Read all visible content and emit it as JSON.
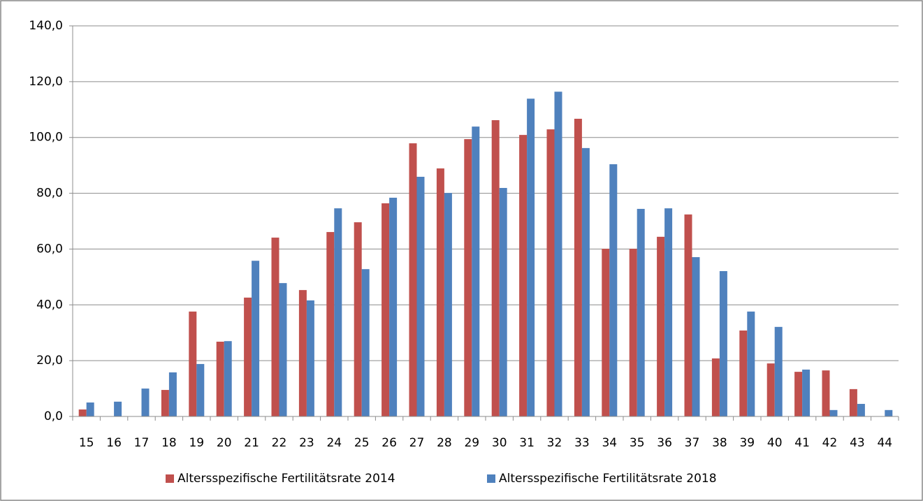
{
  "chart_data": {
    "type": "bar",
    "categories": [
      "15",
      "16",
      "17",
      "18",
      "19",
      "20",
      "21",
      "22",
      "23",
      "24",
      "25",
      "26",
      "27",
      "28",
      "29",
      "30",
      "31",
      "32",
      "33",
      "34",
      "35",
      "36",
      "37",
      "38",
      "39",
      "40",
      "41",
      "42",
      "43",
      "44"
    ],
    "series": [
      {
        "name": "Altersspezifische Fertilitätsrate 2014",
        "color": "#c0504d",
        "values": [
          2.5,
          0,
          0,
          9.5,
          37.6,
          26.8,
          42.6,
          64.1,
          45.3,
          66.1,
          69.6,
          76.4,
          97.9,
          88.9,
          99.4,
          106.2,
          100.9,
          102.9,
          106.7,
          60.1,
          60.1,
          64.4,
          72.4,
          20.8,
          30.8,
          19.0,
          16.0,
          16.5,
          9.8,
          0
        ]
      },
      {
        "name": "Altersspezifische Fertilitätsrate 2018",
        "color": "#4f81bd",
        "values": [
          5.0,
          5.3,
          10.0,
          15.8,
          18.8,
          27.0,
          55.8,
          47.8,
          41.6,
          74.6,
          52.8,
          78.4,
          85.9,
          80.1,
          103.9,
          81.9,
          113.9,
          116.4,
          96.2,
          90.4,
          74.4,
          74.6,
          57.1,
          52.1,
          37.6,
          32.1,
          16.8,
          2.3,
          4.5,
          2.3
        ]
      }
    ],
    "ylim": [
      0,
      140
    ],
    "yticks": [
      {
        "value": 0,
        "label": "0,0"
      },
      {
        "value": 20,
        "label": "20,0"
      },
      {
        "value": 40,
        "label": "40,0"
      },
      {
        "value": 60,
        "label": "60,0"
      },
      {
        "value": 80,
        "label": "80,0"
      },
      {
        "value": 100,
        "label": "100,0"
      },
      {
        "value": 120,
        "label": "120,0"
      },
      {
        "value": 140,
        "label": "140,0"
      }
    ],
    "grid": true,
    "legend": "bottom"
  }
}
